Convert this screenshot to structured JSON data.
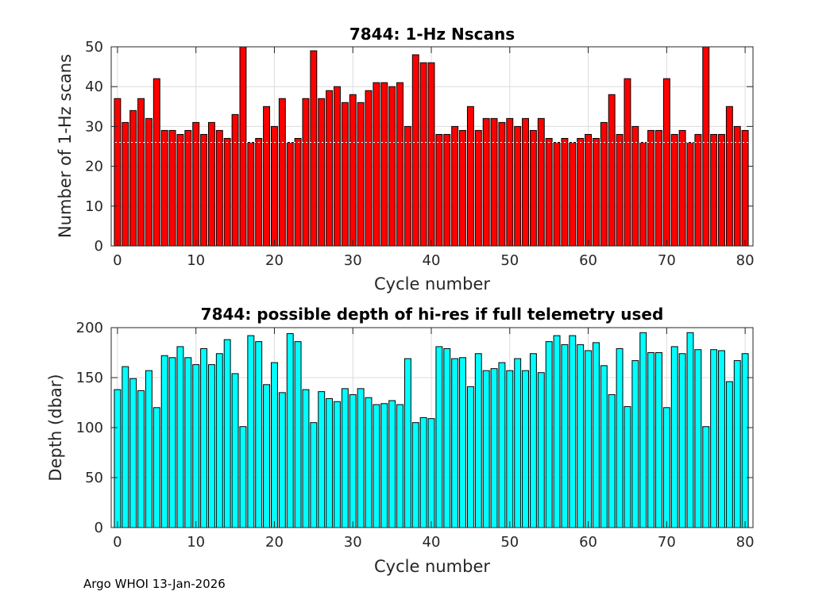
{
  "footer": "Argo WHOI 13-Jan-2026",
  "chart_data": [
    {
      "type": "bar",
      "title": "7844: 1-Hz Nscans",
      "xlabel": "Cycle number",
      "ylabel": "Number of 1-Hz scans",
      "xlim": [
        -0.8,
        81
      ],
      "ylim": [
        0,
        50
      ],
      "xticks": [
        0,
        10,
        20,
        30,
        40,
        50,
        60,
        70,
        80
      ],
      "yticks": [
        0,
        10,
        20,
        30,
        40,
        50
      ],
      "grid": true,
      "color": "#ff0000",
      "reference_line": 26,
      "x": [
        0,
        1,
        2,
        3,
        4,
        5,
        6,
        7,
        8,
        9,
        10,
        11,
        12,
        13,
        14,
        15,
        16,
        17,
        18,
        19,
        20,
        21,
        22,
        23,
        24,
        25,
        26,
        27,
        28,
        29,
        30,
        31,
        32,
        33,
        34,
        35,
        36,
        37,
        38,
        39,
        40,
        41,
        42,
        43,
        44,
        45,
        46,
        47,
        48,
        49,
        50,
        51,
        52,
        53,
        54,
        55,
        56,
        57,
        58,
        59,
        60,
        61,
        62,
        63,
        64,
        65,
        66,
        67,
        68,
        69,
        70,
        71,
        72,
        73,
        74,
        75,
        76,
        77,
        78,
        79,
        80
      ],
      "values": [
        37,
        31,
        34,
        37,
        32,
        42,
        29,
        29,
        28,
        29,
        31,
        28,
        31,
        29,
        27,
        33,
        50,
        26,
        27,
        35,
        30,
        37,
        26,
        27,
        37,
        49,
        37,
        39,
        40,
        36,
        38,
        36,
        39,
        41,
        41,
        40,
        41,
        30,
        48,
        46,
        46,
        28,
        28,
        30,
        29,
        35,
        29,
        32,
        32,
        31,
        32,
        30,
        32,
        29,
        32,
        27,
        26,
        27,
        26,
        27,
        28,
        27,
        31,
        38,
        28,
        42,
        30,
        26,
        29,
        29,
        42,
        28,
        29,
        26,
        28,
        50,
        28,
        28,
        35,
        30,
        29
      ]
    },
    {
      "type": "bar",
      "title": "7844: possible depth of hi-res if full telemetry used",
      "xlabel": "Cycle number",
      "ylabel": "Depth (dbar)",
      "xlim": [
        -0.8,
        81
      ],
      "ylim": [
        0,
        200
      ],
      "xticks": [
        0,
        10,
        20,
        30,
        40,
        50,
        60,
        70,
        80
      ],
      "yticks": [
        0,
        50,
        100,
        150,
        200
      ],
      "grid": true,
      "color": "#00ffff",
      "x": [
        0,
        1,
        2,
        3,
        4,
        5,
        6,
        7,
        8,
        9,
        10,
        11,
        12,
        13,
        14,
        15,
        16,
        17,
        18,
        19,
        20,
        21,
        22,
        23,
        24,
        25,
        26,
        27,
        28,
        29,
        30,
        31,
        32,
        33,
        34,
        35,
        36,
        37,
        38,
        39,
        40,
        41,
        42,
        43,
        44,
        45,
        46,
        47,
        48,
        49,
        50,
        51,
        52,
        53,
        54,
        55,
        56,
        57,
        58,
        59,
        60,
        61,
        62,
        63,
        64,
        65,
        66,
        67,
        68,
        69,
        70,
        71,
        72,
        73,
        74,
        75,
        76,
        77,
        78,
        79,
        80
      ],
      "values": [
        138,
        161,
        149,
        137,
        157,
        120,
        172,
        170,
        181,
        170,
        163,
        179,
        163,
        174,
        188,
        154,
        101,
        192,
        186,
        143,
        165,
        135,
        194,
        186,
        138,
        105,
        136,
        129,
        126,
        139,
        133,
        139,
        130,
        123,
        124,
        127,
        123,
        169,
        105,
        110,
        109,
        181,
        179,
        169,
        170,
        141,
        174,
        157,
        159,
        165,
        157,
        169,
        157,
        174,
        155,
        186,
        192,
        183,
        192,
        183,
        177,
        185,
        162,
        133,
        179,
        121,
        167,
        195,
        175,
        175,
        120,
        181,
        174,
        195,
        178,
        101,
        178,
        177,
        146,
        167,
        174
      ]
    }
  ]
}
